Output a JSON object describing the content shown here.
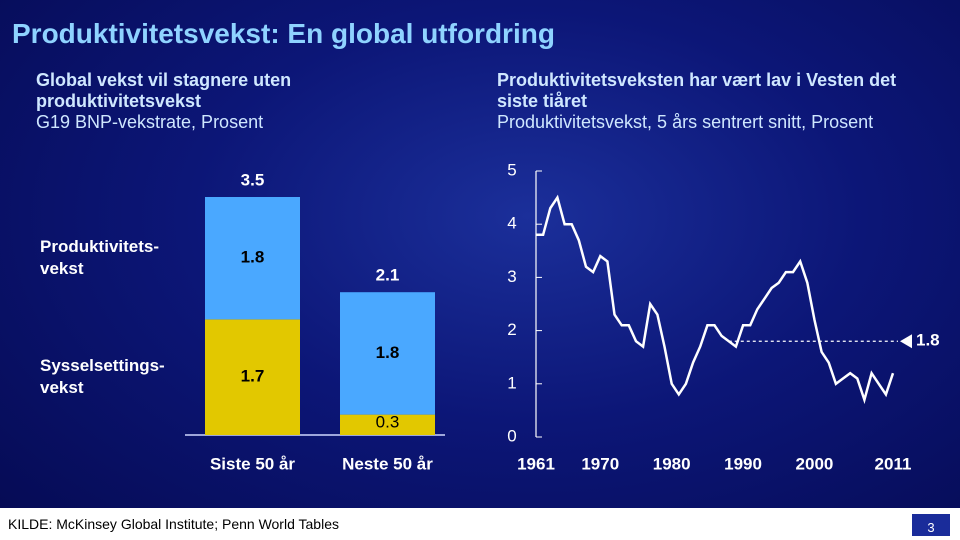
{
  "title": "Produktivitetsvekst: En global utfordring",
  "chart_data": [
    {
      "type": "bar",
      "stacked": true,
      "title": "Global vekst vil stagnere uten produktivitetsvekst",
      "subtitle": "G19 BNP-vekstrate, Prosent",
      "categories": [
        "Siste 50 år",
        "Neste 50 år"
      ],
      "series": [
        {
          "name": "Sysselsettings-\nvekst",
          "color": "#e2c800",
          "values": [
            1.7,
            0.3
          ]
        },
        {
          "name": "Produktivitets-\nvekst",
          "color": "#4aa8ff",
          "values": [
            1.8,
            1.8
          ]
        }
      ],
      "totals": [
        3.5,
        2.1
      ]
    },
    {
      "type": "line",
      "title": "Produktivitetsveksten har vært lav i Vesten det siste tiåret",
      "subtitle": "Produktivitetsvekst, 5 års sentrert snitt, Prosent",
      "x": [
        1961,
        1962,
        1963,
        1964,
        1965,
        1966,
        1967,
        1968,
        1969,
        1970,
        1971,
        1972,
        1973,
        1974,
        1975,
        1976,
        1977,
        1978,
        1979,
        1980,
        1981,
        1982,
        1983,
        1984,
        1985,
        1986,
        1987,
        1988,
        1989,
        1990,
        1991,
        1992,
        1993,
        1994,
        1995,
        1996,
        1997,
        1998,
        1999,
        2000,
        2001,
        2002,
        2003,
        2004,
        2005,
        2006,
        2007,
        2008,
        2009,
        2010,
        2011
      ],
      "series": [
        {
          "color": "#ffffff",
          "values": [
            3.8,
            3.8,
            4.3,
            4.5,
            4.0,
            4.0,
            3.7,
            3.2,
            3.1,
            3.4,
            3.3,
            2.3,
            2.1,
            2.1,
            1.8,
            1.7,
            2.5,
            2.3,
            1.7,
            1.0,
            0.8,
            1.0,
            1.4,
            1.7,
            2.1,
            2.1,
            1.9,
            1.8,
            1.7,
            2.1,
            2.1,
            2.4,
            2.6,
            2.8,
            2.9,
            3.1,
            3.1,
            3.3,
            2.9,
            2.2,
            1.6,
            1.4,
            1.0,
            1.1,
            1.2,
            1.1,
            0.7,
            1.2,
            1.0,
            0.8,
            1.2
          ]
        }
      ],
      "xlim": [
        1961,
        2011
      ],
      "xticks": [
        1961,
        1970,
        1980,
        1990,
        2000,
        2011
      ],
      "ylim": [
        0,
        5
      ],
      "yticks": [
        0,
        1,
        2,
        3,
        4,
        5
      ],
      "reference_value": 1.8
    }
  ],
  "footer": {
    "source": "KILDE: McKinsey Global Institute; Penn World Tables",
    "page": 3
  }
}
